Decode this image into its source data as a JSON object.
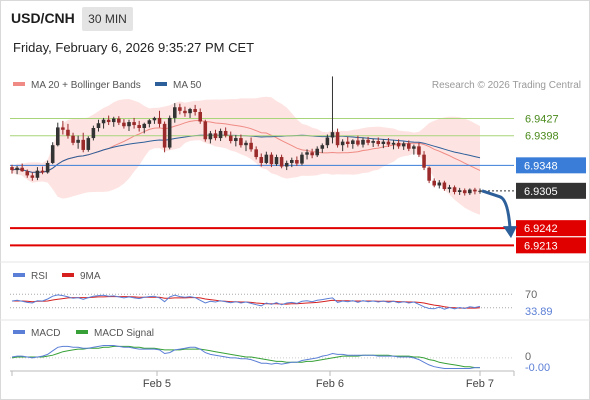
{
  "header": {
    "symbol": "USD/CNH",
    "timeframe": "30 MIN",
    "datetime": "Friday, February 6, 2026 9:35:27 PM CET"
  },
  "legend": {
    "ma20": "MA 20 + Bollinger Bands",
    "ma50": "MA 50",
    "copyright": "Research © 2026 Trading Central"
  },
  "colors": {
    "up": "#333333",
    "down": "#9b2a2a",
    "bollinger_fill": "#fde4e2",
    "ma20": "#f08a84",
    "ma50": "#2d5f9a",
    "resistance": "#a8d47a",
    "current": "#3a7dd8",
    "support": "#e00000",
    "arrow": "#2d5f9a",
    "rsi": "#5b7fd6",
    "rsi_ma": "#d62020",
    "macd": "#5b7fd6",
    "macd_signal": "#37a137"
  },
  "chart_data": {
    "type": "candlestick",
    "x_ticks": [
      "Feb 5",
      "Feb 6",
      "Feb 7"
    ],
    "price_ylim": [
      6.9195,
      6.9465
    ],
    "levels": [
      {
        "kind": "resistance",
        "value": 6.9427,
        "label": "6.9427"
      },
      {
        "kind": "resistance",
        "value": 6.9398,
        "label": "6.9398"
      },
      {
        "kind": "current_line",
        "value": 6.9348,
        "label": "6.9348"
      },
      {
        "kind": "last_price",
        "value": 6.9305,
        "label": "6.9305"
      },
      {
        "kind": "support",
        "value": 6.9242,
        "label": "6.9242"
      },
      {
        "kind": "support",
        "value": 6.9213,
        "label": "6.9213"
      }
    ],
    "candles": [
      [
        6.9345,
        6.9349,
        6.9334,
        6.934
      ],
      [
        6.934,
        6.9347,
        6.9333,
        6.9344
      ],
      [
        6.9344,
        6.9351,
        6.9337,
        6.9338
      ],
      [
        6.9338,
        6.9341,
        6.9327,
        6.9331
      ],
      [
        6.9331,
        6.9336,
        6.9322,
        6.9327
      ],
      [
        6.9327,
        6.9345,
        6.9323,
        6.9339
      ],
      [
        6.9339,
        6.9346,
        6.9333,
        6.9336
      ],
      [
        6.9336,
        6.9356,
        6.9334,
        6.9352
      ],
      [
        6.9352,
        6.9387,
        6.935,
        6.9382
      ],
      [
        6.9382,
        6.942,
        6.938,
        6.9412
      ],
      [
        6.9412,
        6.9423,
        6.94,
        6.9408
      ],
      [
        6.9408,
        6.9418,
        6.9393,
        6.9398
      ],
      [
        6.9398,
        6.9403,
        6.9382,
        6.9386
      ],
      [
        6.9386,
        6.9398,
        6.9376,
        6.9391
      ],
      [
        6.9391,
        6.9403,
        6.937,
        6.9374
      ],
      [
        6.9374,
        6.9397,
        6.9371,
        6.9394
      ],
      [
        6.9394,
        6.9415,
        6.939,
        6.9411
      ],
      [
        6.9411,
        6.9425,
        6.9405,
        6.9419
      ],
      [
        6.9419,
        6.9428,
        6.941,
        6.9425
      ],
      [
        6.9425,
        6.9432,
        6.9416,
        6.9421
      ],
      [
        6.9421,
        6.943,
        6.9413,
        6.9427
      ],
      [
        6.9427,
        6.9431,
        6.9416,
        6.942
      ],
      [
        6.942,
        6.9426,
        6.941,
        6.9414
      ],
      [
        6.9414,
        6.9425,
        6.9406,
        6.9421
      ],
      [
        6.9421,
        6.9428,
        6.941,
        6.9416
      ],
      [
        6.9416,
        6.9423,
        6.9405,
        6.9411
      ],
      [
        6.9411,
        6.942,
        6.9402,
        6.9418
      ],
      [
        6.9418,
        6.9426,
        6.9412,
        6.9424
      ],
      [
        6.9424,
        6.943,
        6.9418,
        6.9428
      ],
      [
        6.9428,
        6.944,
        6.9412,
        6.9418
      ],
      [
        6.9418,
        6.9422,
        6.937,
        6.9378
      ],
      [
        6.9378,
        6.9432,
        6.9375,
        6.9428
      ],
      [
        6.9428,
        6.9453,
        6.942,
        6.9446
      ],
      [
        6.9446,
        6.9452,
        6.9434,
        6.944
      ],
      [
        6.944,
        6.9447,
        6.943,
        6.9436
      ],
      [
        6.9436,
        6.9445,
        6.9428,
        6.9443
      ],
      [
        6.9443,
        6.945,
        6.9432,
        6.9438
      ],
      [
        6.9438,
        6.9444,
        6.9418,
        6.9422
      ],
      [
        6.9422,
        6.9425,
        6.9388,
        6.9392
      ],
      [
        6.9392,
        6.9406,
        6.9385,
        6.9402
      ],
      [
        6.9402,
        6.9408,
        6.939,
        6.9394
      ],
      [
        6.9394,
        6.941,
        6.9389,
        6.9406
      ],
      [
        6.9406,
        6.9412,
        6.9395,
        6.9398
      ],
      [
        6.9398,
        6.9405,
        6.9385,
        6.9389
      ],
      [
        6.9389,
        6.9399,
        6.938,
        6.9394
      ],
      [
        6.9394,
        6.94,
        6.9378,
        6.9382
      ],
      [
        6.9382,
        6.939,
        6.9372,
        6.9386
      ],
      [
        6.9386,
        6.9395,
        6.9371,
        6.9375
      ],
      [
        6.9375,
        6.938,
        6.9358,
        6.9362
      ],
      [
        6.9362,
        6.9368,
        6.9346,
        6.9352
      ],
      [
        6.9352,
        6.9371,
        6.935,
        6.9366
      ],
      [
        6.9366,
        6.937,
        6.9345,
        6.935
      ],
      [
        6.935,
        6.9366,
        6.9347,
        6.9362
      ],
      [
        6.9362,
        6.9366,
        6.9343,
        6.9346
      ],
      [
        6.9346,
        6.9356,
        6.934,
        6.9352
      ],
      [
        6.9352,
        6.9361,
        6.9345,
        6.9357
      ],
      [
        6.9357,
        6.9363,
        6.9347,
        6.9351
      ],
      [
        6.9351,
        6.937,
        6.9348,
        6.9366
      ],
      [
        6.9366,
        6.9375,
        6.9358,
        6.937
      ],
      [
        6.937,
        6.9376,
        6.936,
        6.9365
      ],
      [
        6.9365,
        6.938,
        6.9362,
        6.9376
      ],
      [
        6.9376,
        6.9385,
        6.9369,
        6.9382
      ],
      [
        6.9382,
        6.94,
        6.9377,
        6.9395
      ],
      [
        6.9395,
        6.9498,
        6.9385,
        6.9404
      ],
      [
        6.9404,
        6.941,
        6.9378,
        6.9382
      ],
      [
        6.9382,
        6.9392,
        6.9372,
        6.9388
      ],
      [
        6.9388,
        6.9396,
        6.9378,
        6.9384
      ],
      [
        6.9384,
        6.9392,
        6.9376,
        6.939
      ],
      [
        6.939,
        6.9398,
        6.938,
        6.9383
      ],
      [
        6.9383,
        6.9395,
        6.9378,
        6.9391
      ],
      [
        6.9391,
        6.9396,
        6.9382,
        6.9386
      ],
      [
        6.9386,
        6.9393,
        6.9379,
        6.9389
      ],
      [
        6.9389,
        6.9395,
        6.938,
        6.9384
      ],
      [
        6.9384,
        6.9392,
        6.9377,
        6.9388
      ],
      [
        6.9388,
        6.9394,
        6.9379,
        6.9383
      ],
      [
        6.9383,
        6.939,
        6.9375,
        6.9386
      ],
      [
        6.9386,
        6.9392,
        6.9376,
        6.938
      ],
      [
        6.938,
        6.9388,
        6.9374,
        6.9385
      ],
      [
        6.9385,
        6.939,
        6.9372,
        6.9376
      ],
      [
        6.9376,
        6.9383,
        6.9366,
        6.938
      ],
      [
        6.938,
        6.9386,
        6.9362,
        6.9366
      ],
      [
        6.9366,
        6.9372,
        6.934,
        6.9344
      ],
      [
        6.9344,
        6.9346,
        6.9318,
        6.9322
      ],
      [
        6.9322,
        6.9326,
        6.9311,
        6.9314
      ],
      [
        6.9314,
        6.9323,
        6.9309,
        6.9319
      ],
      [
        6.9319,
        6.9322,
        6.9305,
        6.9308
      ],
      [
        6.9308,
        6.9315,
        6.9302,
        6.9311
      ],
      [
        6.9311,
        6.9314,
        6.9299,
        6.9303
      ],
      [
        6.9303,
        6.931,
        6.9298,
        6.9306
      ],
      [
        6.9306,
        6.9309,
        6.9297,
        6.9301
      ],
      [
        6.9301,
        6.9309,
        6.9298,
        6.9307
      ],
      [
        6.9307,
        6.931,
        6.9299,
        6.9304
      ],
      [
        6.9304,
        6.9309,
        6.93,
        6.9305
      ]
    ],
    "rsi": {
      "title": "RSI",
      "ma_label": "9MA",
      "ylim": [
        0,
        100
      ],
      "ref_levels": [
        70,
        30
      ],
      "tick_label": "70",
      "value_label": "33.89",
      "values": [
        50,
        52,
        49,
        46,
        44,
        51,
        50,
        56,
        64,
        68,
        66,
        62,
        58,
        60,
        55,
        60,
        64,
        66,
        67,
        64,
        65,
        62,
        59,
        62,
        59,
        57,
        61,
        63,
        64,
        59,
        48,
        62,
        67,
        63,
        61,
        63,
        60,
        52,
        44,
        49,
        47,
        51,
        48,
        45,
        48,
        44,
        47,
        43,
        39,
        36,
        44,
        40,
        45,
        39,
        44,
        46,
        43,
        49,
        51,
        48,
        52,
        54,
        57,
        59,
        46,
        50,
        48,
        51,
        46,
        51,
        48,
        50,
        47,
        50,
        46,
        49,
        45,
        48,
        44,
        47,
        40,
        33,
        28,
        27,
        32,
        26,
        31,
        27,
        31,
        28,
        33,
        31,
        34
      ],
      "ma_values": [
        50,
        50,
        50,
        49,
        48,
        49,
        49,
        50,
        53,
        55,
        57,
        59,
        60,
        60,
        60,
        60,
        61,
        62,
        62,
        63,
        63,
        63,
        63,
        63,
        62,
        61,
        61,
        61,
        61,
        61,
        58,
        58,
        59,
        59,
        59,
        60,
        60,
        59,
        56,
        54,
        52,
        50,
        49,
        48,
        48,
        47,
        47,
        46,
        44,
        43,
        42,
        42,
        42,
        41,
        41,
        42,
        42,
        43,
        44,
        45,
        46,
        48,
        50,
        52,
        51,
        51,
        51,
        50,
        50,
        50,
        50,
        50,
        49,
        49,
        49,
        49,
        48,
        48,
        47,
        47,
        46,
        44,
        41,
        38,
        36,
        33,
        31,
        30,
        29,
        29,
        29,
        29,
        30
      ]
    },
    "macd": {
      "title": "MACD",
      "signal_label": "MACD Signal",
      "ylim": [
        -0.0016,
        0.0018
      ],
      "tick_label": "0",
      "value_label": "-0.00",
      "values": [
        0.0001,
        0.0002,
        0.0002,
        0.0001,
        0,
        0.0001,
        0.0002,
        0.0004,
        0.0008,
        0.0012,
        0.0013,
        0.0013,
        0.0012,
        0.0012,
        0.0011,
        0.0011,
        0.0012,
        0.0013,
        0.0014,
        0.0014,
        0.0014,
        0.0013,
        0.0012,
        0.0012,
        0.0011,
        0.001,
        0.001,
        0.001,
        0.001,
        0.0009,
        0.0005,
        0.0006,
        0.0009,
        0.001,
        0.0011,
        0.0012,
        0.0012,
        0.001,
        0.0006,
        0.0004,
        0.0003,
        0.0002,
        0.0001,
        0,
        0,
        -0.0001,
        -0.0001,
        -0.0002,
        -0.0004,
        -0.0006,
        -0.0006,
        -0.0007,
        -0.0006,
        -0.0007,
        -0.0006,
        -0.0005,
        -0.0005,
        -0.0003,
        -0.0002,
        -0.0001,
        0,
        0.0002,
        0.0003,
        0.0005,
        0.0004,
        0.0004,
        0.0003,
        0.0003,
        0.0003,
        0.0003,
        0.0003,
        0.0003,
        0.0002,
        0.0002,
        0.0002,
        0.0002,
        0.0001,
        0.0001,
        0.0001,
        0,
        -0.0002,
        -0.0005,
        -0.0008,
        -0.001,
        -0.0011,
        -0.0012,
        -0.0012,
        -0.0012,
        -0.0012,
        -0.0012,
        -0.0012,
        -0.0011,
        -0.0011
      ],
      "signal_values": [
        0,
        0.0001,
        0.0001,
        0.0001,
        0.0001,
        0.0001,
        0.0001,
        0.0002,
        0.0003,
        0.0005,
        0.0007,
        0.0008,
        0.0009,
        0.001,
        0.001,
        0.0011,
        0.0011,
        0.0011,
        0.0012,
        0.0012,
        0.0013,
        0.0013,
        0.0013,
        0.0013,
        0.0012,
        0.0012,
        0.0011,
        0.0011,
        0.0011,
        0.001,
        0.0009,
        0.0009,
        0.0009,
        0.0009,
        0.001,
        0.001,
        0.001,
        0.001,
        0.0009,
        0.0008,
        0.0007,
        0.0006,
        0.0005,
        0.0004,
        0.0003,
        0.0002,
        0.0001,
        0.0001,
        0,
        -0.0001,
        -0.0002,
        -0.0003,
        -0.0004,
        -0.0004,
        -0.0005,
        -0.0005,
        -0.0005,
        -0.0005,
        -0.0004,
        -0.0004,
        -0.0003,
        -0.0002,
        -0.0001,
        0,
        0.0001,
        0.0002,
        0.0002,
        0.0002,
        0.0002,
        0.0003,
        0.0003,
        0.0003,
        0.0003,
        0.0003,
        0.0003,
        0.0002,
        0.0002,
        0.0002,
        0.0002,
        0.0001,
        0.0001,
        0,
        -0.0002,
        -0.0003,
        -0.0005,
        -0.0006,
        -0.0007,
        -0.0008,
        -0.0009,
        -0.001,
        -0.001,
        -0.0011,
        -0.0011
      ]
    }
  }
}
